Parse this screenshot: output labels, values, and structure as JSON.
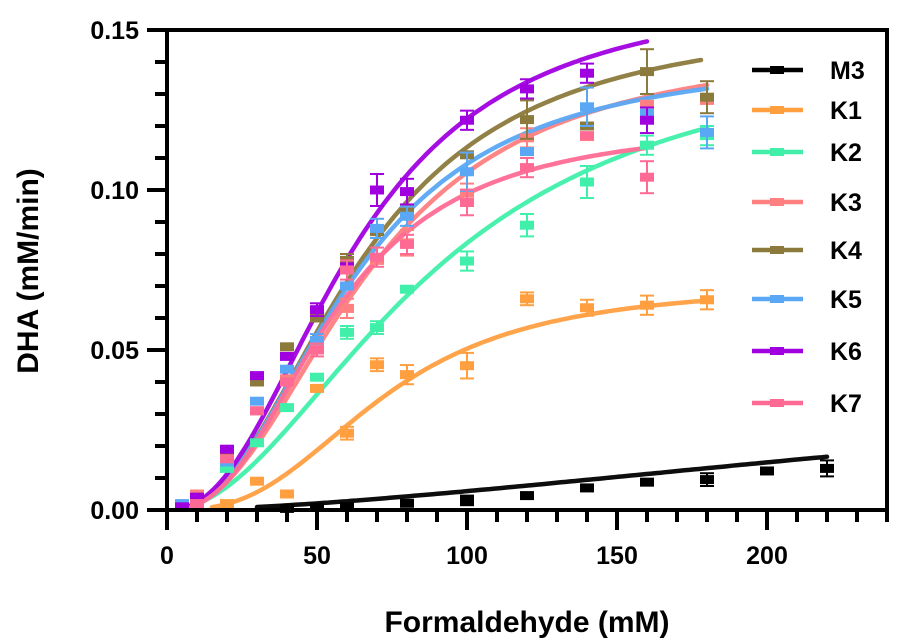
{
  "chart_data": {
    "type": "scatter",
    "title": "",
    "xlabel": "Formaldehyde (mM)",
    "ylabel": "DHA (mM/min)",
    "xlim": [
      0,
      240
    ],
    "ylim": [
      0,
      0.15
    ],
    "x_ticks": [
      0,
      50,
      100,
      150,
      200
    ],
    "x_tick_labels": [
      "0",
      "50",
      "100",
      "150",
      "200"
    ],
    "x_minor_step": 10,
    "y_ticks": [
      0,
      0.05,
      0.1,
      0.15
    ],
    "y_tick_labels": [
      "0.00",
      "0.05",
      "0.10",
      "0.15"
    ],
    "y_minor_step": 0.01,
    "grid": false,
    "legend_position": "top-right",
    "series": [
      {
        "name": "M3",
        "color": "#000000",
        "points": [
          [
            40,
            0.0005,
            0
          ],
          [
            50,
            0.0008,
            0
          ],
          [
            60,
            0.001,
            0
          ],
          [
            80,
            0.0021,
            0
          ],
          [
            100,
            0.003,
            0.0015
          ],
          [
            120,
            0.0045,
            0
          ],
          [
            140,
            0.0069,
            0
          ],
          [
            160,
            0.0087,
            0
          ],
          [
            180,
            0.0095,
            0.002
          ],
          [
            200,
            0.0122,
            0
          ],
          [
            220,
            0.013,
            0.0025
          ]
        ],
        "fit": {
          "model": "hill",
          "vmax": 0.06,
          "k": 400,
          "n": 1.6,
          "x_range": [
            30,
            220
          ]
        }
      },
      {
        "name": "K1",
        "color": "#FF9F40",
        "points": [
          [
            20,
            0.002,
            0
          ],
          [
            30,
            0.009,
            0
          ],
          [
            40,
            0.005,
            0
          ],
          [
            50,
            0.038,
            0
          ],
          [
            60,
            0.024,
            0.002
          ],
          [
            70,
            0.0454,
            0.002
          ],
          [
            80,
            0.0423,
            0.003
          ],
          [
            100,
            0.0451,
            0.004
          ],
          [
            120,
            0.066,
            0.002
          ],
          [
            140,
            0.0632,
            0.0025
          ],
          [
            160,
            0.064,
            0.003
          ],
          [
            180,
            0.0657,
            0.003
          ]
        ],
        "fit": {
          "model": "hill",
          "vmax": 0.0705,
          "k": 72,
          "n": 2.8,
          "x_range": [
            15,
            180
          ]
        }
      },
      {
        "name": "K2",
        "color": "#40F0AA",
        "points": [
          [
            10,
            0.002,
            0
          ],
          [
            20,
            0.013,
            0
          ],
          [
            30,
            0.021,
            0
          ],
          [
            40,
            0.032,
            0
          ],
          [
            50,
            0.0415,
            0
          ],
          [
            60,
            0.0555,
            0.002
          ],
          [
            70,
            0.057,
            0.002
          ],
          [
            80,
            0.069,
            0
          ],
          [
            100,
            0.0778,
            0.003
          ],
          [
            120,
            0.089,
            0.0035
          ],
          [
            140,
            0.1025,
            0.005
          ],
          [
            160,
            0.114,
            0.003
          ],
          [
            180,
            0.117,
            0.003
          ]
        ],
        "fit": {
          "model": "hill",
          "vmax": 0.148,
          "k": 88,
          "n": 2.0,
          "x_range": [
            8,
            180
          ]
        }
      },
      {
        "name": "K3",
        "color": "#FF8080",
        "points": [
          [
            10,
            0.005,
            0
          ],
          [
            20,
            0.017,
            0
          ],
          [
            30,
            0.031,
            0
          ],
          [
            40,
            0.041,
            0
          ],
          [
            50,
            0.052,
            0
          ],
          [
            60,
            0.063,
            0.003
          ],
          [
            70,
            0.078,
            0
          ],
          [
            80,
            0.0835,
            0.004
          ],
          [
            100,
            0.099,
            0.003
          ],
          [
            120,
            0.1163,
            0.003
          ],
          [
            140,
            0.1167,
            0
          ],
          [
            160,
            0.1268,
            0
          ],
          [
            180,
            0.128,
            0
          ]
        ],
        "fit": {
          "model": "hill",
          "vmax": 0.146,
          "k": 66,
          "n": 2.3,
          "x_range": [
            8,
            180
          ]
        }
      },
      {
        "name": "K4",
        "color": "#8C7A3C",
        "points": [
          [
            5,
            0.001,
            0
          ],
          [
            10,
            0.004,
            0
          ],
          [
            20,
            0.018,
            0
          ],
          [
            30,
            0.04,
            0
          ],
          [
            40,
            0.051,
            0
          ],
          [
            50,
            0.06,
            0
          ],
          [
            60,
            0.078,
            0.002
          ],
          [
            70,
            0.087,
            0.002
          ],
          [
            80,
            0.094,
            0
          ],
          [
            100,
            0.111,
            0
          ],
          [
            120,
            0.122,
            0.006
          ],
          [
            140,
            0.12,
            0
          ],
          [
            160,
            0.137,
            0.007
          ],
          [
            180,
            0.129,
            0.005
          ]
        ],
        "fit": {
          "model": "hill",
          "vmax": 0.154,
          "k": 64,
          "n": 2.3,
          "x_range": [
            5,
            178
          ]
        }
      },
      {
        "name": "K5",
        "color": "#5AA8F5",
        "points": [
          [
            5,
            0.002,
            0
          ],
          [
            10,
            0.003,
            0
          ],
          [
            20,
            0.015,
            0
          ],
          [
            30,
            0.034,
            0
          ],
          [
            40,
            0.044,
            0
          ],
          [
            50,
            0.053,
            0.002
          ],
          [
            60,
            0.07,
            0
          ],
          [
            70,
            0.088,
            0.003
          ],
          [
            80,
            0.0918,
            0.003
          ],
          [
            100,
            0.1057,
            0.006
          ],
          [
            120,
            0.112,
            0
          ],
          [
            140,
            0.126,
            0.006
          ],
          [
            160,
            0.124,
            0
          ],
          [
            180,
            0.118,
            0.005
          ]
        ],
        "fit": {
          "model": "hill",
          "vmax": 0.142,
          "k": 61,
          "n": 2.35,
          "x_range": [
            5,
            180
          ]
        }
      },
      {
        "name": "K6",
        "color": "#A000E0",
        "points": [
          [
            5,
            0.001,
            0
          ],
          [
            10,
            0.004,
            0
          ],
          [
            20,
            0.019,
            0
          ],
          [
            30,
            0.042,
            0
          ],
          [
            40,
            0.048,
            0
          ],
          [
            50,
            0.0626,
            0.002
          ],
          [
            60,
            0.076,
            0
          ],
          [
            70,
            0.1,
            0.005
          ],
          [
            80,
            0.0995,
            0.004
          ],
          [
            100,
            0.1218,
            0.003
          ],
          [
            120,
            0.1316,
            0.003
          ],
          [
            140,
            0.1365,
            0.003
          ],
          [
            160,
            0.1218,
            0.004
          ]
        ],
        "fit": {
          "model": "hill",
          "vmax": 0.163,
          "k": 62,
          "n": 2.3,
          "x_range": [
            5,
            160
          ]
        }
      },
      {
        "name": "K7",
        "color": "#FF6A95",
        "points": [
          [
            10,
            0.002,
            0
          ],
          [
            20,
            0.016,
            0
          ],
          [
            30,
            0.031,
            0
          ],
          [
            40,
            0.04,
            0
          ],
          [
            50,
            0.05,
            0.002
          ],
          [
            60,
            0.075,
            0.003
          ],
          [
            70,
            0.079,
            0.003
          ],
          [
            80,
            0.083,
            0.003
          ],
          [
            100,
            0.0961,
            0.004
          ],
          [
            120,
            0.107,
            0.003
          ],
          [
            140,
            0.117,
            0
          ],
          [
            160,
            0.104,
            0.005
          ]
        ],
        "fit": {
          "model": "hill",
          "vmax": 0.121,
          "k": 55,
          "n": 2.5,
          "x_range": [
            8,
            160
          ]
        }
      }
    ]
  }
}
